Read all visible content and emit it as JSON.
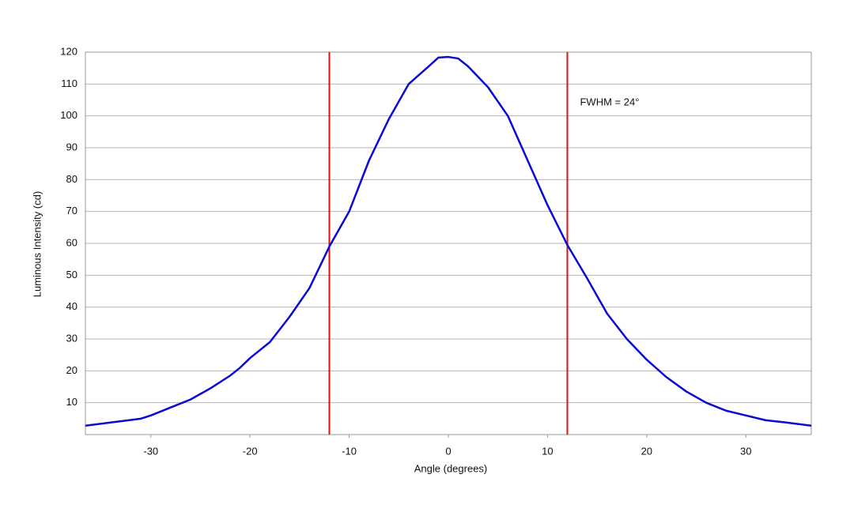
{
  "chart_data": {
    "type": "line",
    "x_label": "Angle (degrees)",
    "y_label": "Luminous Intensity (cd)",
    "x": [
      -36.6,
      -34,
      -32,
      -31,
      -30,
      -28,
      -26,
      -24,
      -22,
      -21,
      -20,
      -18,
      -16,
      -14,
      -12,
      -10,
      -8,
      -6,
      -4,
      -2,
      -1,
      0,
      1,
      2,
      4,
      6,
      8,
      10,
      12,
      14,
      16,
      18,
      20,
      22,
      24,
      26,
      28,
      30,
      32,
      34,
      36.6
    ],
    "series": [
      {
        "color": "#0a0ad2",
        "values": [
          2.8,
          3.8,
          4.6,
          5,
          6,
          8.5,
          11,
          14.5,
          18.5,
          21,
          24,
          29,
          37,
          46,
          59,
          70,
          86,
          99,
          110,
          115.5,
          118.3,
          118.5,
          118,
          115.5,
          109,
          100,
          86,
          72,
          59.5,
          49,
          38,
          30,
          23.5,
          18,
          13.5,
          10,
          7.5,
          6,
          4.5,
          3.8,
          2.8
        ]
      }
    ],
    "vlines": [
      -12,
      12
    ],
    "vline_color": "#e01010",
    "annotation": "FWHM = 24°",
    "xlim": [
      -36.6,
      36.6
    ],
    "ylim": [
      0,
      120
    ],
    "xticks": [
      -30,
      -20,
      -10,
      0,
      10,
      20,
      30
    ],
    "yticks": [
      10,
      20,
      30,
      40,
      50,
      60,
      70,
      80,
      90,
      100,
      110,
      120
    ],
    "grid": true
  }
}
